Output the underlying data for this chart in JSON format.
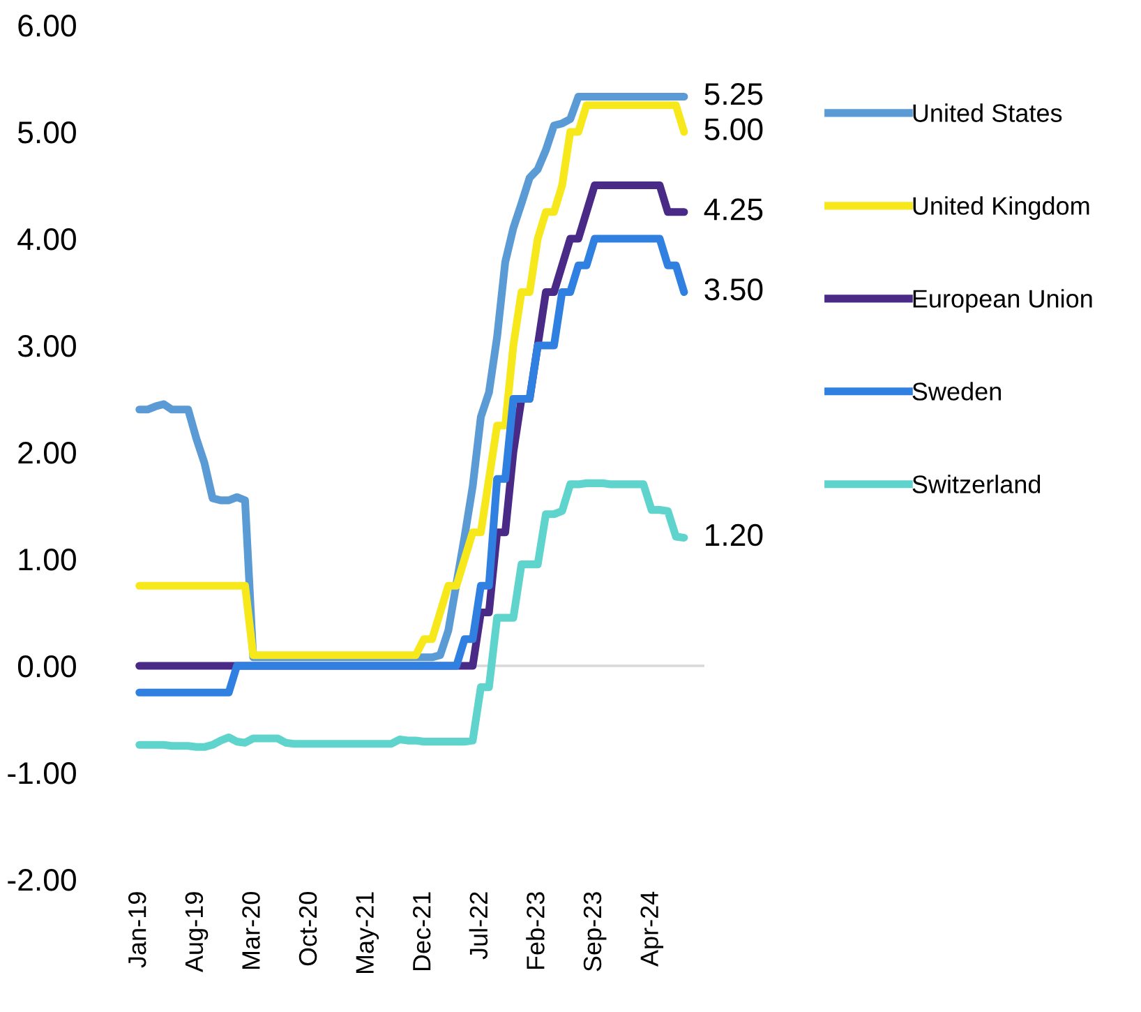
{
  "chart_data": {
    "type": "line",
    "categories": [
      "Jan-19",
      null,
      null,
      null,
      null,
      null,
      null,
      "Aug-19",
      null,
      null,
      null,
      null,
      null,
      null,
      "Mar-20",
      null,
      null,
      null,
      null,
      null,
      null,
      "Oct-20",
      null,
      null,
      null,
      null,
      null,
      null,
      "May-21",
      null,
      null,
      null,
      null,
      null,
      null,
      "Dec-21",
      null,
      null,
      null,
      null,
      null,
      null,
      "Jul-22",
      null,
      null,
      null,
      null,
      null,
      null,
      "Feb-23",
      null,
      null,
      null,
      null,
      null,
      null,
      "Sep-23",
      null,
      null,
      null,
      null,
      null,
      null,
      "Apr-24",
      null,
      null,
      null,
      null
    ],
    "series": [
      {
        "name": "United States",
        "color": "#5b9bd5",
        "values": [
          2.4,
          2.4,
          2.43,
          2.45,
          2.4,
          2.4,
          2.4,
          2.13,
          1.9,
          1.57,
          1.55,
          1.55,
          1.58,
          1.55,
          0.08,
          0.08,
          0.08,
          0.08,
          0.08,
          0.08,
          0.08,
          0.08,
          0.08,
          0.08,
          0.08,
          0.08,
          0.08,
          0.08,
          0.08,
          0.08,
          0.08,
          0.08,
          0.08,
          0.08,
          0.08,
          0.08,
          0.08,
          0.1,
          0.33,
          0.77,
          1.21,
          1.68,
          2.33,
          2.56,
          3.08,
          3.78,
          4.1,
          4.33,
          4.57,
          4.65,
          4.83,
          5.06,
          5.08,
          5.12,
          5.33,
          5.33,
          5.33,
          5.33,
          5.33,
          5.33,
          5.33,
          5.33,
          5.33,
          5.33,
          5.33,
          5.33,
          5.33,
          5.33
        ]
      },
      {
        "name": "United Kingdom",
        "color": "#f7e81c",
        "values": [
          0.75,
          0.75,
          0.75,
          0.75,
          0.75,
          0.75,
          0.75,
          0.75,
          0.75,
          0.75,
          0.75,
          0.75,
          0.75,
          0.75,
          0.1,
          0.1,
          0.1,
          0.1,
          0.1,
          0.1,
          0.1,
          0.1,
          0.1,
          0.1,
          0.1,
          0.1,
          0.1,
          0.1,
          0.1,
          0.1,
          0.1,
          0.1,
          0.1,
          0.1,
          0.1,
          0.25,
          0.25,
          0.5,
          0.75,
          0.75,
          1.0,
          1.25,
          1.25,
          1.75,
          2.25,
          2.25,
          3.0,
          3.5,
          3.5,
          4.0,
          4.25,
          4.25,
          4.5,
          5.0,
          5.0,
          5.25,
          5.25,
          5.25,
          5.25,
          5.25,
          5.25,
          5.25,
          5.25,
          5.25,
          5.25,
          5.25,
          5.25,
          5.0
        ]
      },
      {
        "name": "European Union",
        "color": "#4a2a87",
        "values": [
          0,
          0,
          0,
          0,
          0,
          0,
          0,
          0,
          0,
          0,
          0,
          0,
          0,
          0,
          0,
          0,
          0,
          0,
          0,
          0,
          0,
          0,
          0,
          0,
          0,
          0,
          0,
          0,
          0,
          0,
          0,
          0,
          0,
          0,
          0,
          0,
          0,
          0,
          0,
          0,
          0,
          0,
          0.5,
          0.5,
          1.25,
          1.25,
          2.0,
          2.5,
          2.5,
          3.0,
          3.5,
          3.5,
          3.75,
          4.0,
          4.0,
          4.25,
          4.5,
          4.5,
          4.5,
          4.5,
          4.5,
          4.5,
          4.5,
          4.5,
          4.5,
          4.25,
          4.25,
          4.25
        ]
      },
      {
        "name": "Sweden",
        "color": "#2f80e0",
        "values": [
          -0.25,
          -0.25,
          -0.25,
          -0.25,
          -0.25,
          -0.25,
          -0.25,
          -0.25,
          -0.25,
          -0.25,
          -0.25,
          -0.25,
          0,
          0,
          0,
          0,
          0,
          0,
          0,
          0,
          0,
          0,
          0,
          0,
          0,
          0,
          0,
          0,
          0,
          0,
          0,
          0,
          0,
          0,
          0,
          0,
          0,
          0,
          0,
          0,
          0.25,
          0.25,
          0.75,
          0.75,
          1.75,
          1.75,
          2.5,
          2.5,
          2.5,
          3.0,
          3.0,
          3.0,
          3.5,
          3.5,
          3.75,
          3.75,
          4.0,
          4.0,
          4.0,
          4.0,
          4.0,
          4.0,
          4.0,
          4.0,
          4.0,
          3.75,
          3.75,
          3.5
        ]
      },
      {
        "name": "Switzerland",
        "color": "#5fd4cd",
        "values": [
          -0.74,
          -0.74,
          -0.74,
          -0.74,
          -0.75,
          -0.75,
          -0.75,
          -0.76,
          -0.76,
          -0.74,
          -0.7,
          -0.67,
          -0.71,
          -0.72,
          -0.68,
          -0.68,
          -0.68,
          -0.68,
          -0.72,
          -0.73,
          -0.73,
          -0.73,
          -0.73,
          -0.73,
          -0.73,
          -0.73,
          -0.73,
          -0.73,
          -0.73,
          -0.73,
          -0.73,
          -0.73,
          -0.69,
          -0.7,
          -0.7,
          -0.71,
          -0.71,
          -0.71,
          -0.71,
          -0.71,
          -0.71,
          -0.7,
          -0.2,
          -0.2,
          0.45,
          0.45,
          0.45,
          0.95,
          0.95,
          0.95,
          1.42,
          1.42,
          1.45,
          1.7,
          1.7,
          1.71,
          1.71,
          1.71,
          1.7,
          1.7,
          1.7,
          1.7,
          1.7,
          1.46,
          1.46,
          1.45,
          1.21,
          1.2
        ]
      }
    ],
    "value_labels": [
      [
        null,
        null,
        null,
        null,
        null,
        null,
        null,
        null,
        null,
        null,
        null,
        null,
        null,
        null,
        null,
        null,
        null,
        null,
        null,
        null,
        null,
        null,
        null,
        null,
        null,
        null,
        null,
        null,
        null,
        null,
        null,
        null,
        null,
        null,
        null,
        null,
        null,
        null,
        null,
        null,
        null,
        null,
        null,
        null,
        null,
        null,
        null,
        null,
        null,
        null,
        null,
        null,
        null,
        null,
        null,
        null,
        null,
        null,
        null,
        null,
        null,
        null,
        null,
        null,
        null,
        null,
        null,
        "5.25"
      ],
      [
        null,
        null,
        null,
        null,
        null,
        null,
        null,
        null,
        null,
        null,
        null,
        null,
        null,
        null,
        null,
        null,
        null,
        null,
        null,
        null,
        null,
        null,
        null,
        null,
        null,
        null,
        null,
        null,
        null,
        null,
        null,
        null,
        null,
        null,
        null,
        null,
        null,
        null,
        null,
        null,
        null,
        null,
        null,
        null,
        null,
        null,
        null,
        null,
        null,
        null,
        null,
        null,
        null,
        null,
        null,
        null,
        null,
        null,
        null,
        null,
        null,
        null,
        null,
        null,
        null,
        null,
        null,
        "5.00"
      ],
      [
        null,
        null,
        null,
        null,
        null,
        null,
        null,
        null,
        null,
        null,
        null,
        null,
        null,
        null,
        null,
        null,
        null,
        null,
        null,
        null,
        null,
        null,
        null,
        null,
        null,
        null,
        null,
        null,
        null,
        null,
        null,
        null,
        null,
        null,
        null,
        null,
        null,
        null,
        null,
        null,
        null,
        null,
        null,
        null,
        null,
        null,
        null,
        null,
        null,
        null,
        null,
        null,
        null,
        null,
        null,
        null,
        null,
        null,
        null,
        null,
        null,
        null,
        null,
        null,
        null,
        null,
        null,
        "4.25"
      ],
      [
        null,
        null,
        null,
        null,
        null,
        null,
        null,
        null,
        null,
        null,
        null,
        null,
        null,
        null,
        null,
        null,
        null,
        null,
        null,
        null,
        null,
        null,
        null,
        null,
        null,
        null,
        null,
        null,
        null,
        null,
        null,
        null,
        null,
        null,
        null,
        null,
        null,
        null,
        null,
        null,
        null,
        null,
        null,
        null,
        null,
        null,
        null,
        null,
        null,
        null,
        null,
        null,
        null,
        null,
        null,
        null,
        null,
        null,
        null,
        null,
        null,
        null,
        null,
        null,
        null,
        null,
        null,
        "3.50"
      ],
      [
        null,
        null,
        null,
        null,
        null,
        null,
        null,
        null,
        null,
        null,
        null,
        null,
        null,
        null,
        null,
        null,
        null,
        null,
        null,
        null,
        null,
        null,
        null,
        null,
        null,
        null,
        null,
        null,
        null,
        null,
        null,
        null,
        null,
        null,
        null,
        null,
        null,
        null,
        null,
        null,
        null,
        null,
        null,
        null,
        null,
        null,
        null,
        null,
        null,
        null,
        null,
        null,
        null,
        null,
        null,
        null,
        null,
        null,
        null,
        null,
        null,
        null,
        null,
        null,
        null,
        null,
        null,
        "1.20"
      ]
    ],
    "ylim": [
      -2,
      6
    ],
    "yticks": [
      {
        "value": -2,
        "label": "-2.00"
      },
      {
        "value": -1,
        "label": "-1.00"
      },
      {
        "value": 0,
        "label": "0.00"
      },
      {
        "value": 1,
        "label": "1.00"
      },
      {
        "value": 2,
        "label": "2.00"
      },
      {
        "value": 3,
        "label": "3.00"
      },
      {
        "value": 4,
        "label": "4.00"
      },
      {
        "value": 5,
        "label": "5.00"
      },
      {
        "value": 6,
        "label": "6.00"
      }
    ],
    "ref_lines": [
      {
        "axis": "y",
        "value": 0,
        "color": "#d9d9d9"
      }
    ],
    "legend": "right",
    "marker": "none",
    "line_style": "solid"
  }
}
